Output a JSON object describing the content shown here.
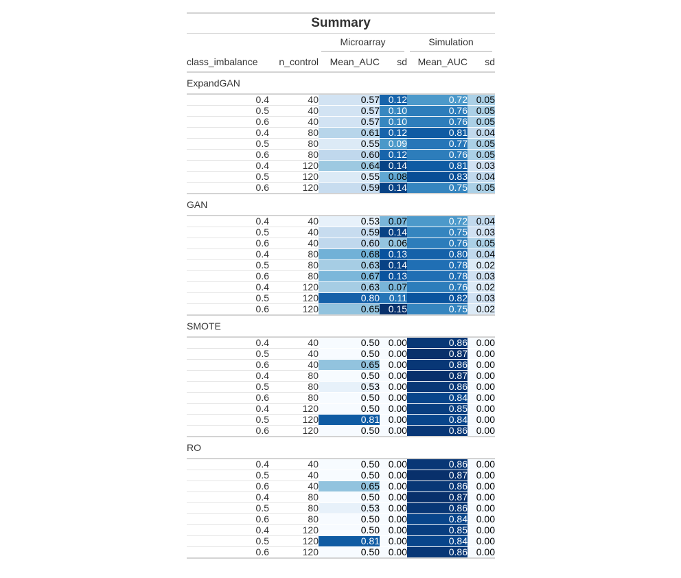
{
  "chart_data": {
    "type": "table",
    "title": "Summary",
    "spanners": [
      "Microarray",
      "Simulation"
    ],
    "columns": [
      "class_imbalance",
      "n_control",
      "Mean_AUC",
      "sd",
      "Mean_AUC",
      "sd"
    ],
    "groups": [
      {
        "name": "ExpandGAN",
        "rows": [
          {
            "class_imbalance": "0.4",
            "n_control": "40",
            "micro_mean": "0.57",
            "micro_sd": "0.12",
            "sim_mean": "0.72",
            "sim_sd": "0.05"
          },
          {
            "class_imbalance": "0.5",
            "n_control": "40",
            "micro_mean": "0.57",
            "micro_sd": "0.10",
            "sim_mean": "0.76",
            "sim_sd": "0.05"
          },
          {
            "class_imbalance": "0.6",
            "n_control": "40",
            "micro_mean": "0.57",
            "micro_sd": "0.10",
            "sim_mean": "0.76",
            "sim_sd": "0.05"
          },
          {
            "class_imbalance": "0.4",
            "n_control": "80",
            "micro_mean": "0.61",
            "micro_sd": "0.12",
            "sim_mean": "0.81",
            "sim_sd": "0.04"
          },
          {
            "class_imbalance": "0.5",
            "n_control": "80",
            "micro_mean": "0.55",
            "micro_sd": "0.09",
            "sim_mean": "0.77",
            "sim_sd": "0.05"
          },
          {
            "class_imbalance": "0.6",
            "n_control": "80",
            "micro_mean": "0.60",
            "micro_sd": "0.12",
            "sim_mean": "0.76",
            "sim_sd": "0.05"
          },
          {
            "class_imbalance": "0.4",
            "n_control": "120",
            "micro_mean": "0.64",
            "micro_sd": "0.14",
            "sim_mean": "0.81",
            "sim_sd": "0.03"
          },
          {
            "class_imbalance": "0.5",
            "n_control": "120",
            "micro_mean": "0.55",
            "micro_sd": "0.08",
            "sim_mean": "0.83",
            "sim_sd": "0.04"
          },
          {
            "class_imbalance": "0.6",
            "n_control": "120",
            "micro_mean": "0.59",
            "micro_sd": "0.14",
            "sim_mean": "0.75",
            "sim_sd": "0.05"
          }
        ]
      },
      {
        "name": "GAN",
        "rows": [
          {
            "class_imbalance": "0.4",
            "n_control": "40",
            "micro_mean": "0.53",
            "micro_sd": "0.07",
            "sim_mean": "0.72",
            "sim_sd": "0.04"
          },
          {
            "class_imbalance": "0.5",
            "n_control": "40",
            "micro_mean": "0.59",
            "micro_sd": "0.14",
            "sim_mean": "0.75",
            "sim_sd": "0.03"
          },
          {
            "class_imbalance": "0.6",
            "n_control": "40",
            "micro_mean": "0.60",
            "micro_sd": "0.06",
            "sim_mean": "0.76",
            "sim_sd": "0.05"
          },
          {
            "class_imbalance": "0.4",
            "n_control": "80",
            "micro_mean": "0.68",
            "micro_sd": "0.13",
            "sim_mean": "0.80",
            "sim_sd": "0.04"
          },
          {
            "class_imbalance": "0.5",
            "n_control": "80",
            "micro_mean": "0.63",
            "micro_sd": "0.14",
            "sim_mean": "0.78",
            "sim_sd": "0.02"
          },
          {
            "class_imbalance": "0.6",
            "n_control": "80",
            "micro_mean": "0.67",
            "micro_sd": "0.13",
            "sim_mean": "0.78",
            "sim_sd": "0.03"
          },
          {
            "class_imbalance": "0.4",
            "n_control": "120",
            "micro_mean": "0.63",
            "micro_sd": "0.07",
            "sim_mean": "0.76",
            "sim_sd": "0.02"
          },
          {
            "class_imbalance": "0.5",
            "n_control": "120",
            "micro_mean": "0.80",
            "micro_sd": "0.11",
            "sim_mean": "0.82",
            "sim_sd": "0.03"
          },
          {
            "class_imbalance": "0.6",
            "n_control": "120",
            "micro_mean": "0.65",
            "micro_sd": "0.15",
            "sim_mean": "0.75",
            "sim_sd": "0.02"
          }
        ]
      },
      {
        "name": "SMOTE",
        "rows": [
          {
            "class_imbalance": "0.4",
            "n_control": "40",
            "micro_mean": "0.50",
            "micro_sd": "0.00",
            "sim_mean": "0.86",
            "sim_sd": "0.00"
          },
          {
            "class_imbalance": "0.5",
            "n_control": "40",
            "micro_mean": "0.50",
            "micro_sd": "0.00",
            "sim_mean": "0.87",
            "sim_sd": "0.00"
          },
          {
            "class_imbalance": "0.6",
            "n_control": "40",
            "micro_mean": "0.65",
            "micro_sd": "0.00",
            "sim_mean": "0.86",
            "sim_sd": "0.00"
          },
          {
            "class_imbalance": "0.4",
            "n_control": "80",
            "micro_mean": "0.50",
            "micro_sd": "0.00",
            "sim_mean": "0.87",
            "sim_sd": "0.00"
          },
          {
            "class_imbalance": "0.5",
            "n_control": "80",
            "micro_mean": "0.53",
            "micro_sd": "0.00",
            "sim_mean": "0.86",
            "sim_sd": "0.00"
          },
          {
            "class_imbalance": "0.6",
            "n_control": "80",
            "micro_mean": "0.50",
            "micro_sd": "0.00",
            "sim_mean": "0.84",
            "sim_sd": "0.00"
          },
          {
            "class_imbalance": "0.4",
            "n_control": "120",
            "micro_mean": "0.50",
            "micro_sd": "0.00",
            "sim_mean": "0.85",
            "sim_sd": "0.00"
          },
          {
            "class_imbalance": "0.5",
            "n_control": "120",
            "micro_mean": "0.81",
            "micro_sd": "0.00",
            "sim_mean": "0.84",
            "sim_sd": "0.00"
          },
          {
            "class_imbalance": "0.6",
            "n_control": "120",
            "micro_mean": "0.50",
            "micro_sd": "0.00",
            "sim_mean": "0.86",
            "sim_sd": "0.00"
          }
        ]
      },
      {
        "name": "RO",
        "rows": [
          {
            "class_imbalance": "0.4",
            "n_control": "40",
            "micro_mean": "0.50",
            "micro_sd": "0.00",
            "sim_mean": "0.86",
            "sim_sd": "0.00"
          },
          {
            "class_imbalance": "0.5",
            "n_control": "40",
            "micro_mean": "0.50",
            "micro_sd": "0.00",
            "sim_mean": "0.87",
            "sim_sd": "0.00"
          },
          {
            "class_imbalance": "0.6",
            "n_control": "40",
            "micro_mean": "0.65",
            "micro_sd": "0.00",
            "sim_mean": "0.86",
            "sim_sd": "0.00"
          },
          {
            "class_imbalance": "0.4",
            "n_control": "80",
            "micro_mean": "0.50",
            "micro_sd": "0.00",
            "sim_mean": "0.87",
            "sim_sd": "0.00"
          },
          {
            "class_imbalance": "0.5",
            "n_control": "80",
            "micro_mean": "0.53",
            "micro_sd": "0.00",
            "sim_mean": "0.86",
            "sim_sd": "0.00"
          },
          {
            "class_imbalance": "0.6",
            "n_control": "80",
            "micro_mean": "0.50",
            "micro_sd": "0.00",
            "sim_mean": "0.84",
            "sim_sd": "0.00"
          },
          {
            "class_imbalance": "0.4",
            "n_control": "120",
            "micro_mean": "0.50",
            "micro_sd": "0.00",
            "sim_mean": "0.85",
            "sim_sd": "0.00"
          },
          {
            "class_imbalance": "0.5",
            "n_control": "120",
            "micro_mean": "0.81",
            "micro_sd": "0.00",
            "sim_mean": "0.84",
            "sim_sd": "0.00"
          },
          {
            "class_imbalance": "0.6",
            "n_control": "120",
            "micro_mean": "0.50",
            "micro_sd": "0.00",
            "sim_mean": "0.86",
            "sim_sd": "0.00"
          }
        ]
      }
    ],
    "color_scale": {
      "palette": [
        "#f7fbff",
        "#deebf7",
        "#c6dbef",
        "#9ecae1",
        "#6baed6",
        "#4292c6",
        "#2171b5",
        "#08519c",
        "#08306b"
      ],
      "mean_auc_range": [
        0.5,
        0.87
      ],
      "sd_range": [
        0,
        0.15
      ]
    }
  }
}
